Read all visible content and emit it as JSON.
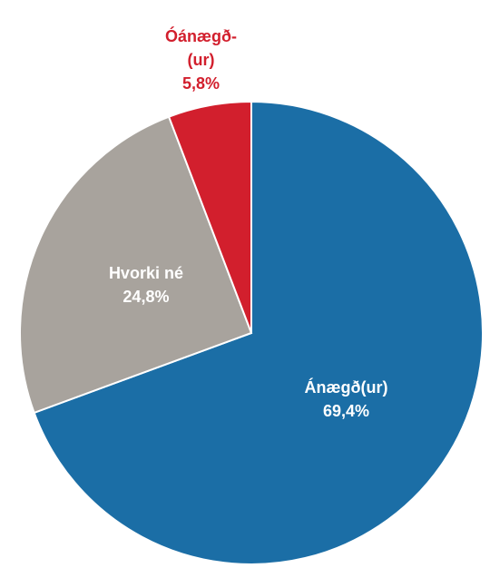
{
  "chart_data": {
    "type": "pie",
    "categories": [
      "Ánægð(ur)",
      "Hvorki né",
      "Óánægð-(ur)"
    ],
    "values": [
      69.4,
      24.8,
      5.8
    ],
    "value_labels": [
      "69,4%",
      "24,8%",
      "5,8%"
    ],
    "colors": [
      "#1b6ea6",
      "#a8a39d",
      "#d21f2d"
    ]
  }
}
